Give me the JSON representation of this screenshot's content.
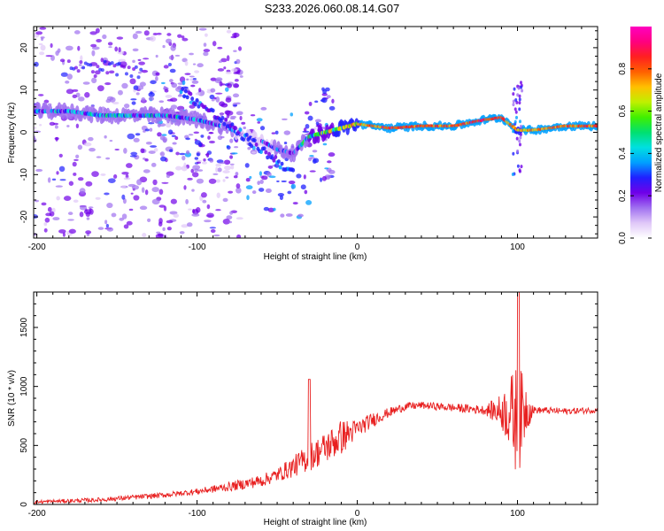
{
  "title": "S233.2026.060.08.14.G07",
  "chart_data": [
    {
      "type": "heatmap",
      "title": "S233.2026.060.08.14.G07",
      "xlabel": "Height of straight line (km)",
      "ylabel": "Frequency (Hz)",
      "xlim": [
        -202,
        150
      ],
      "ylim": [
        -25,
        25
      ],
      "x_ticks": [
        -200,
        -100,
        0,
        100
      ],
      "y_ticks": [
        -20,
        -10,
        0,
        10,
        20
      ],
      "colorbar": {
        "label": "Normalized spectral amplitude",
        "range": [
          0,
          1
        ],
        "ticks": [
          0.0,
          0.2,
          0.4,
          0.6,
          0.8
        ],
        "colors": [
          "#ffffff",
          "#e0c8f8",
          "#a070f0",
          "#7000e8",
          "#2020ff",
          "#00a0ff",
          "#00e0e0",
          "#00e070",
          "#40f000",
          "#c0f000",
          "#ffc000",
          "#ff6000",
          "#ff2020",
          "#ff0080",
          "#ff00c0"
        ]
      },
      "ridge": {
        "x": [
          -200,
          -180,
          -160,
          -140,
          -120,
          -100,
          -90,
          -80,
          -70,
          -60,
          -50,
          -40,
          -30,
          -20,
          -10,
          0,
          20,
          40,
          60,
          80,
          90,
          100,
          110,
          130,
          150
        ],
        "frequency": [
          5,
          5,
          4,
          4,
          4,
          3,
          2,
          1,
          -1,
          -2,
          -4,
          -5,
          -1,
          0,
          1,
          2,
          1,
          1.5,
          1.5,
          3,
          3.5,
          0.5,
          0.5,
          1.5,
          1.5
        ],
        "amplitude": [
          0.3,
          0.3,
          0.35,
          0.35,
          0.35,
          0.3,
          0.25,
          0.25,
          0.2,
          0.2,
          0.25,
          0.3,
          0.4,
          0.5,
          0.6,
          0.7,
          0.85,
          0.8,
          0.8,
          0.85,
          0.8,
          0.7,
          0.75,
          0.8,
          0.8
        ]
      }
    },
    {
      "type": "line",
      "xlabel": "Height of straight line (km)",
      "ylabel": "SNR (10 * v/v)",
      "xlim": [
        -202,
        150
      ],
      "ylim": [
        0,
        1800
      ],
      "x_ticks": [
        -200,
        -100,
        0,
        100
      ],
      "y_ticks": [
        0,
        500,
        1000,
        1500
      ],
      "color": "#e82020",
      "envelope": {
        "x": [
          -202,
          -180,
          -160,
          -140,
          -120,
          -100,
          -80,
          -60,
          -50,
          -40,
          -30,
          -20,
          -10,
          0,
          10,
          20,
          30,
          40,
          60,
          80,
          90,
          95,
          100,
          105,
          110,
          130,
          150
        ],
        "snr": [
          20,
          30,
          40,
          60,
          80,
          110,
          150,
          200,
          250,
          320,
          400,
          480,
          570,
          640,
          720,
          780,
          830,
          840,
          820,
          800,
          790,
          780,
          700,
          820,
          800,
          790,
          800
        ]
      },
      "noise": {
        "x": [
          -200,
          -100,
          -50,
          -30,
          -10,
          0,
          20,
          40,
          80,
          90,
          95,
          100,
          105,
          110,
          150
        ],
        "amplitude": [
          15,
          25,
          60,
          120,
          150,
          80,
          40,
          30,
          40,
          150,
          300,
          500,
          250,
          30,
          25
        ]
      },
      "spikes": {
        "x": [
          -30,
          100.5
        ],
        "snr": [
          1060,
          1800
        ]
      }
    }
  ]
}
